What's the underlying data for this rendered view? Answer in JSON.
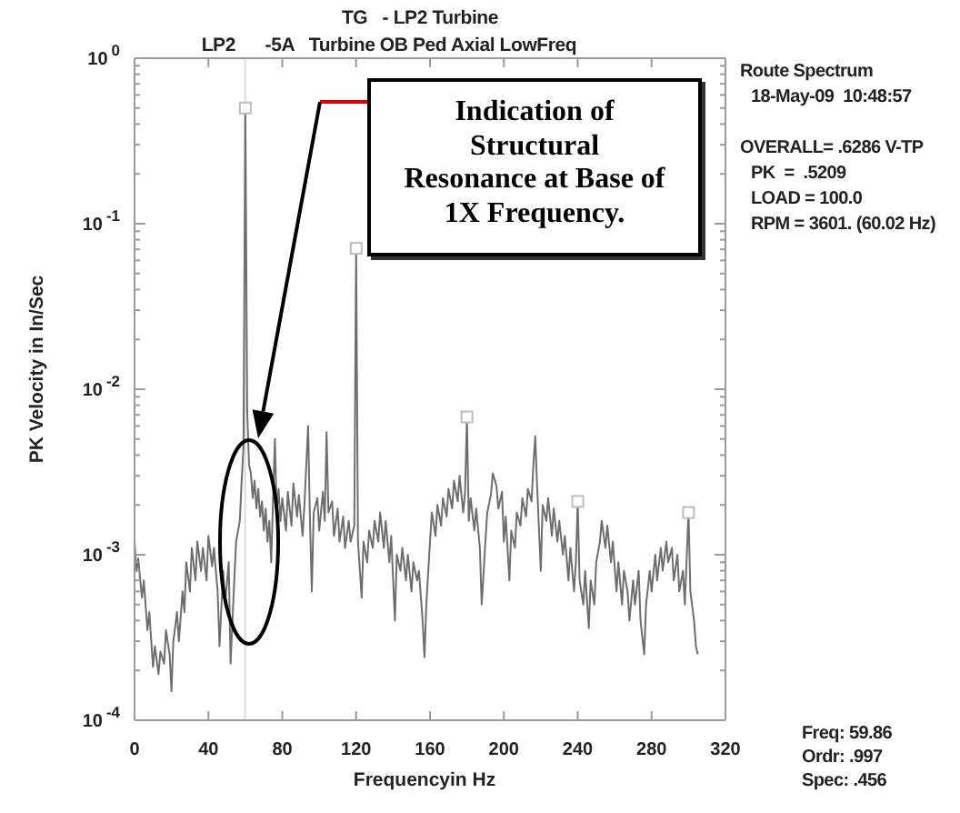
{
  "chart_data": {
    "type": "line",
    "title": "TG   - LP2 Turbine",
    "subtitle": "LP2      -5A   Turbine OB Ped Axial LowFreq",
    "xlabel": "Frequencyin Hz",
    "ylabel": "PK Velocity in In/Sec",
    "xlim": [
      0,
      320
    ],
    "xticks": [
      0,
      40,
      80,
      120,
      160,
      200,
      240,
      280,
      320
    ],
    "ylim": [
      0.0001,
      1
    ],
    "yticks": [
      {
        "value": 0.0001,
        "label": "10$^{-4}$"
      },
      {
        "value": 0.0002,
        "label": null
      },
      {
        "value": 0.0003,
        "label": null
      },
      {
        "value": 0.0004,
        "label": null
      },
      {
        "value": 0.0005,
        "label": null
      },
      {
        "value": 0.0006,
        "label": null
      },
      {
        "value": 0.0007,
        "label": null
      },
      {
        "value": 0.0008,
        "label": null
      },
      {
        "value": 0.0009,
        "label": null
      },
      {
        "value": 0.001,
        "label": "10$^{-3}$"
      },
      {
        "value": 0.002,
        "label": null
      },
      {
        "value": 0.003,
        "label": null
      },
      {
        "value": 0.004,
        "label": null
      },
      {
        "value": 0.005,
        "label": null
      },
      {
        "value": 0.006,
        "label": null
      },
      {
        "value": 0.007,
        "label": null
      },
      {
        "value": 0.008,
        "label": null
      },
      {
        "value": 0.009,
        "label": null
      },
      {
        "value": 0.01,
        "label": "10$^{-2}$"
      },
      {
        "value": 0.02,
        "label": null
      },
      {
        "value": 0.03,
        "label": null
      },
      {
        "value": 0.04,
        "label": null
      },
      {
        "value": 0.05,
        "label": null
      },
      {
        "value": 0.06,
        "label": null
      },
      {
        "value": 0.07,
        "label": null
      },
      {
        "value": 0.08,
        "label": null
      },
      {
        "value": 0.09,
        "label": null
      },
      {
        "value": 0.1,
        "label": "10$^{-1}$"
      },
      {
        "value": 0.2,
        "label": null
      },
      {
        "value": 0.3,
        "label": null
      },
      {
        "value": 0.4,
        "label": null
      },
      {
        "value": 0.5,
        "label": null
      },
      {
        "value": 0.6,
        "label": null
      },
      {
        "value": 0.7,
        "label": null
      },
      {
        "value": 0.8,
        "label": null
      },
      {
        "value": 0.9,
        "label": null
      },
      {
        "value": 1,
        "label": "10$^{0}$"
      }
    ],
    "log": true,
    "series": [
      {
        "color": "#6e6e6e",
        "x": [
          0,
          1,
          2,
          4,
          5,
          7,
          8,
          10,
          11,
          13,
          14,
          16,
          17,
          19,
          20,
          21,
          23,
          24,
          26,
          27,
          28,
          30,
          31,
          33,
          34,
          36,
          37,
          39,
          40,
          42,
          43,
          45,
          46,
          48,
          49,
          51,
          52,
          54,
          55,
          57,
          58,
          59,
          60,
          61,
          62,
          63,
          64,
          65,
          66,
          67,
          68,
          69,
          70,
          71,
          72,
          73,
          74,
          76,
          77,
          78,
          79,
          80,
          82,
          83,
          85,
          86,
          88,
          89,
          91,
          92,
          94,
          95,
          96,
          97,
          99,
          100,
          102,
          103,
          104,
          105,
          107,
          108,
          110,
          111,
          113,
          114,
          116,
          117,
          119,
          120,
          121,
          123,
          124,
          126,
          127,
          129,
          130,
          132,
          133,
          135,
          136,
          138,
          139,
          141,
          142,
          144,
          145,
          147,
          148,
          150,
          151,
          153,
          154,
          156,
          157,
          158,
          160,
          161,
          163,
          164,
          166,
          167,
          169,
          170,
          172,
          173,
          175,
          176,
          178,
          179,
          180,
          181,
          182,
          184,
          185,
          187,
          188,
          190,
          191,
          193,
          194,
          196,
          197,
          199,
          200,
          201,
          203,
          204,
          206,
          207,
          209,
          210,
          212,
          213,
          215,
          216,
          217,
          218,
          220,
          221,
          223,
          224,
          226,
          227,
          229,
          230,
          232,
          233,
          235,
          236,
          238,
          239,
          240,
          241,
          243,
          244,
          246,
          247,
          249,
          250,
          252,
          253,
          255,
          256,
          258,
          259,
          261,
          262,
          264,
          265,
          267,
          268,
          270,
          271,
          273,
          274,
          276,
          277,
          279,
          280,
          282,
          283,
          285,
          286,
          288,
          289,
          291,
          292,
          294,
          295,
          297,
          298,
          300,
          301,
          303,
          304,
          305
        ],
        "values": [
          0.0012,
          0.0008,
          0.00095,
          0.00055,
          0.0007,
          0.00035,
          0.00045,
          0.00021,
          0.00028,
          0.00019,
          0.00026,
          0.00022,
          0.00035,
          0.00025,
          0.00015,
          0.0003,
          0.00045,
          0.0003,
          0.0006,
          0.00045,
          0.0009,
          0.0006,
          0.0011,
          0.0007,
          0.0012,
          0.0008,
          0.0011,
          0.0007,
          0.0013,
          0.00085,
          0.0011,
          0.0006,
          0.00028,
          0.0008,
          0.0005,
          0.0009,
          0.00022,
          0.0007,
          0.0012,
          0.0016,
          0.0028,
          0.0045,
          0.5,
          0.0075,
          0.0035,
          0.0031,
          0.0022,
          0.0028,
          0.0019,
          0.0025,
          0.0017,
          0.0021,
          0.0014,
          0.0019,
          0.0012,
          0.0016,
          0.0009,
          0.005,
          0.0018,
          0.0025,
          0.0016,
          0.0022,
          0.0014,
          0.0024,
          0.0015,
          0.0027,
          0.0017,
          0.0023,
          0.0013,
          0.002,
          0.006,
          0.0016,
          0.0006,
          0.0018,
          0.0022,
          0.0014,
          0.0024,
          0.0016,
          0.0055,
          0.0018,
          0.0021,
          0.0013,
          0.0019,
          0.0012,
          0.0017,
          0.0011,
          0.0016,
          0.0012,
          0.0015,
          0.071,
          0.0012,
          0.00055,
          0.0012,
          0.0009,
          0.0014,
          0.0011,
          0.0016,
          0.0012,
          0.0018,
          0.0011,
          0.0016,
          0.0009,
          0.0013,
          0.0004,
          0.001,
          0.0008,
          0.0011,
          0.0007,
          0.001,
          0.0006,
          0.0009,
          0.0007,
          0.0008,
          0.0004,
          0.00024,
          0.0005,
          0.0012,
          0.0018,
          0.0013,
          0.002,
          0.0015,
          0.0022,
          0.0017,
          0.0025,
          0.0019,
          0.0028,
          0.0021,
          0.003,
          0.0018,
          0.0024,
          0.0068,
          0.0016,
          0.0022,
          0.0014,
          0.0019,
          0.0011,
          0.0005,
          0.0012,
          0.0018,
          0.0023,
          0.0031,
          0.0026,
          0.0019,
          0.0024,
          0.0012,
          0.0017,
          0.0007,
          0.0014,
          0.0011,
          0.0018,
          0.0015,
          0.0022,
          0.0017,
          0.0025,
          0.0021,
          0.0035,
          0.0052,
          0.0026,
          0.0008,
          0.002,
          0.0016,
          0.0022,
          0.0013,
          0.0019,
          0.0012,
          0.0016,
          0.001,
          0.0013,
          0.0007,
          0.0011,
          0.0006,
          0.0009,
          0.0021,
          0.0007,
          0.0005,
          0.0008,
          0.00036,
          0.0007,
          0.0005,
          0.0009,
          0.0012,
          0.0016,
          0.0011,
          0.0015,
          0.0009,
          0.0012,
          0.0006,
          0.0009,
          0.0005,
          0.0008,
          0.0006,
          0.0004,
          0.0007,
          0.0005,
          0.0008,
          0.0004,
          0.00025,
          0.0005,
          0.0008,
          0.0006,
          0.001,
          0.0007,
          0.0011,
          0.0008,
          0.0012,
          0.0009,
          0.0011,
          0.0007,
          0.001,
          0.0006,
          0.0008,
          0.0005,
          0.0018,
          0.0006,
          0.0004,
          0.00028,
          0.00025
        ]
      },
      {
        "type": "scatter",
        "color": "#bdbdbd",
        "marker": "square",
        "x": [
          60,
          120,
          180,
          240,
          300
        ],
        "values": [
          0.5,
          0.071,
          0.0068,
          0.0021,
          0.0018
        ]
      }
    ],
    "ref_lines": [
      {
        "axis": "x",
        "value": 59.86,
        "color": "#dcdcdc"
      }
    ],
    "annotations": [
      "Indication of Structural Resonance at Base of 1X Frequency.",
      "Route Spectrum",
      "18-May-09  10:48:57",
      "OVERALL= .6286 V-TP",
      "PK  =  .5209",
      "LOAD = 100.0",
      "RPM = 3601. (60.02 Hz)",
      "Freq: 59.86",
      "Ordr: .997",
      "Spec: .456"
    ]
  }
}
